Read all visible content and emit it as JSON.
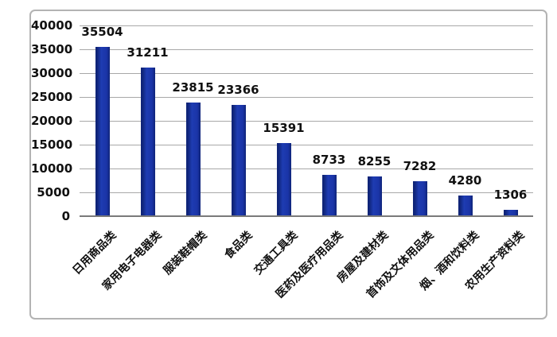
{
  "chart_data": {
    "type": "bar",
    "title": "",
    "xlabel": "",
    "ylabel": "",
    "categories": [
      "日用商品类",
      "家用电子电器类",
      "服装鞋帽类",
      "食品类",
      "交通工具类",
      "医药及医疗用品类",
      "房屋及建材类",
      "首饰及文体用品类",
      "烟、酒和饮料类",
      "农用生产资料类"
    ],
    "values": [
      35504,
      31211,
      23815,
      23366,
      15391,
      8733,
      8255,
      7282,
      4280,
      1306
    ],
    "data_labels": [
      "35504",
      "31211",
      "23815",
      "23366",
      "15391",
      "8733",
      "8255",
      "7282",
      "4280",
      "1306"
    ],
    "ylim": [
      0,
      40000
    ],
    "ytick_step": 5000,
    "ytick_labels": [
      "0",
      "5000",
      "10000",
      "15000",
      "20000",
      "25000",
      "30000",
      "35000",
      "40000"
    ],
    "grid": true,
    "legend_position": "none",
    "bar_orientation": "vertical",
    "x_label_rotation_deg": -45
  },
  "colors": {
    "bar": "#1a34a7",
    "bar_highlight": "#1e3cb2",
    "bar_edge": "#0f2478",
    "gridline": "#a8a8a8",
    "axis_line": "#7a7a7a",
    "frame_border": "#b3b3b3",
    "text": "#111111",
    "background": "#ffffff"
  }
}
